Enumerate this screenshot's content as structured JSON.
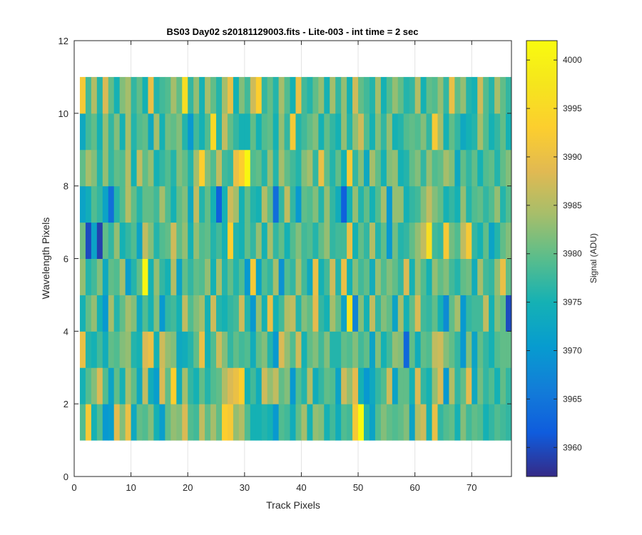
{
  "chart_data": {
    "type": "heatmap",
    "title": "BS03 Day02  s20181129003.fits - Lite-003 - int time = 2 sec",
    "xlabel": "Track Pixels",
    "ylabel": "Wavelength Pixels",
    "colorbar_label": "Signal (ADU)",
    "colormap": "parula",
    "xlim": [
      0,
      77
    ],
    "ylim": [
      0,
      12
    ],
    "clim": [
      3957,
      4002
    ],
    "grid": true,
    "x_ticks": [
      0,
      10,
      20,
      30,
      40,
      50,
      60,
      70
    ],
    "y_ticks": [
      0,
      2,
      4,
      6,
      8,
      10,
      12
    ],
    "colorbar_ticks": [
      3960,
      3965,
      3970,
      3975,
      3980,
      3985,
      3990,
      3995,
      4000
    ],
    "x_extent": [
      1,
      77
    ],
    "y_extent": [
      1,
      11
    ],
    "row_y_values": [
      1.5,
      2.5,
      3.5,
      4.5,
      5.5,
      6.5,
      7.5,
      8.5,
      9.5,
      10.5
    ],
    "column_count": 76,
    "values": [
      [
        3979,
        3992,
        3975,
        3979,
        3970,
        3971,
        3989,
        3982,
        3990,
        3973,
        3980,
        3979,
        3982,
        3975,
        3971,
        3980,
        3983,
        3982,
        3988,
        3979,
        3978,
        3986,
        3980,
        3984,
        3980,
        3993,
        3992,
        3983,
        3985,
        3979,
        3975,
        3975,
        3976,
        3975,
        3970,
        3979,
        3978,
        3974,
        3980,
        3984,
        3975,
        3983,
        3982,
        3975,
        3978,
        3974,
        3979,
        3978,
        3992,
        4002,
        3976,
        3972,
        3979,
        3982,
        3980,
        3979,
        3980,
        3982,
        3972,
        3985,
        3987,
        3975,
        3990,
        3977,
        3979,
        3980,
        3975,
        3982,
        3978,
        3980,
        3979,
        3975,
        3977,
        3979,
        3978,
        3977
      ],
      [
        3975,
        3979,
        3982,
        3988,
        3979,
        3972,
        3980,
        3975,
        3984,
        3980,
        3973,
        3986,
        3974,
        3971,
        3988,
        3980,
        3993,
        3974,
        3984,
        3977,
        3975,
        3980,
        3976,
        3979,
        3980,
        3985,
        3988,
        3990,
        3993,
        3975,
        3978,
        3974,
        3987,
        3983,
        3986,
        3980,
        3982,
        3970,
        3979,
        3976,
        3985,
        3974,
        3977,
        3980,
        3979,
        3972,
        3987,
        3983,
        3989,
        3975,
        3970,
        3973,
        3977,
        3979,
        3987,
        3972,
        3980,
        3980,
        3975,
        3988,
        3977,
        3975,
        3983,
        3988,
        3970,
        3985,
        3977,
        3980,
        3989,
        3973,
        3981,
        3977,
        3979,
        3975,
        3980,
        3977
      ],
      [
        3990,
        3976,
        3975,
        3978,
        3974,
        3980,
        3979,
        3982,
        3983,
        3976,
        3975,
        3988,
        3990,
        3975,
        3987,
        3983,
        3982,
        3973,
        3974,
        3976,
        3980,
        3990,
        3975,
        3979,
        3987,
        3982,
        3977,
        3980,
        3978,
        3979,
        3974,
        3980,
        3982,
        3976,
        3970,
        3988,
        3983,
        3979,
        3987,
        3975,
        3980,
        3982,
        3978,
        3982,
        3976,
        3976,
        3980,
        3979,
        3982,
        3978,
        3980,
        3972,
        3982,
        3975,
        3978,
        3983,
        3982,
        3963,
        3980,
        3974,
        3980,
        3979,
        3986,
        3987,
        3982,
        3980,
        3977,
        3970,
        3982,
        3972,
        3980,
        3977,
        3975,
        3979,
        3980,
        3980
      ],
      [
        3975,
        3980,
        3983,
        3975,
        3970,
        3984,
        3976,
        3980,
        3984,
        3982,
        3973,
        3979,
        3975,
        3982,
        3970,
        3977,
        3978,
        3975,
        3986,
        3979,
        3982,
        3984,
        3975,
        3987,
        3976,
        3975,
        3977,
        3978,
        3987,
        3976,
        3970,
        3983,
        3975,
        3990,
        3975,
        3978,
        3985,
        3986,
        3976,
        3982,
        3980,
        3989,
        3977,
        3975,
        3984,
        3980,
        3972,
        3997,
        3967,
        3982,
        3975,
        3986,
        3977,
        3982,
        3980,
        3972,
        3984,
        3975,
        3980,
        3988,
        3978,
        3977,
        3980,
        3975,
        3968,
        3980,
        3984,
        3970,
        3977,
        3978,
        3978,
        3986,
        3975,
        3982,
        3980,
        3960
      ],
      [
        3983,
        3976,
        3978,
        3982,
        3973,
        3980,
        3979,
        3984,
        3971,
        3976,
        3980,
        4001,
        3975,
        3983,
        3977,
        3975,
        3985,
        3972,
        3980,
        3977,
        3980,
        3979,
        3983,
        3975,
        3984,
        3976,
        3980,
        3976,
        3979,
        3970,
        3992,
        3972,
        3979,
        3977,
        3984,
        3969,
        3979,
        3977,
        3984,
        3978,
        3973,
        3990,
        3975,
        3978,
        3987,
        3976,
        3990,
        3975,
        3982,
        3978,
        3980,
        3974,
        3983,
        3979,
        3982,
        3980,
        3977,
        3988,
        3975,
        3983,
        3979,
        3975,
        3983,
        3980,
        3982,
        3978,
        3976,
        3980,
        3981,
        3974,
        3984,
        3978,
        3977,
        3983,
        3990,
        3980
      ],
      [
        3981,
        3960,
        3972,
        3959,
        3980,
        3977,
        3983,
        3975,
        3977,
        3979,
        3972,
        3986,
        3982,
        3976,
        3979,
        3980,
        3987,
        3980,
        3983,
        3975,
        3983,
        3979,
        3980,
        3976,
        3978,
        3975,
        3993,
        3976,
        3975,
        3980,
        3977,
        3983,
        3975,
        3984,
        3977,
        3980,
        3975,
        3979,
        3982,
        3978,
        3979,
        3976,
        3980,
        3983,
        3977,
        3978,
        3978,
        3990,
        3975,
        3980,
        3977,
        3985,
        3976,
        3980,
        3970,
        3981,
        3976,
        3977,
        3980,
        3983,
        3986,
        3996,
        3978,
        3977,
        3992,
        3981,
        3979,
        3986,
        3992,
        3977,
        3975,
        3980,
        3972,
        3976,
        3980,
        3982
      ],
      [
        3972,
        3974,
        3979,
        3977,
        3972,
        3964,
        3976,
        3979,
        3985,
        3980,
        3976,
        3980,
        3980,
        3978,
        3984,
        3979,
        3975,
        3980,
        3982,
        3973,
        3986,
        3976,
        3980,
        3975,
        3962,
        3975,
        3987,
        3984,
        3975,
        3980,
        3976,
        3975,
        3985,
        3980,
        3964,
        3977,
        3986,
        3977,
        3970,
        3980,
        3979,
        3982,
        3976,
        3983,
        3977,
        3974,
        3962,
        3975,
        3983,
        3976,
        3980,
        3975,
        3979,
        3984,
        3970,
        3983,
        3983,
        3975,
        3977,
        3978,
        3982,
        3986,
        3982,
        3980,
        3975,
        3977,
        3975,
        3983,
        3976,
        3979,
        3980,
        3977,
        3979,
        3983,
        3976,
        3979
      ],
      [
        3980,
        3984,
        3982,
        3976,
        3983,
        3977,
        3980,
        3979,
        3985,
        3975,
        3986,
        3980,
        3983,
        3975,
        3977,
        3979,
        3976,
        3982,
        3980,
        3976,
        3984,
        3993,
        3982,
        3979,
        3986,
        3978,
        3977,
        3990,
        3993,
        4001,
        3979,
        3980,
        3976,
        3983,
        3976,
        3984,
        3980,
        3978,
        3976,
        3982,
        3984,
        3977,
        3990,
        3980,
        3976,
        3980,
        3975,
        3992,
        3977,
        3982,
        3973,
        3984,
        3980,
        3975,
        3982,
        3983,
        3975,
        3976,
        3980,
        3982,
        3977,
        3983,
        3979,
        3980,
        3984,
        3982,
        3973,
        3980,
        3977,
        3980,
        3975,
        3979,
        3980,
        3976,
        3980,
        3982
      ],
      [
        3973,
        3978,
        3980,
        3975,
        3983,
        3977,
        3982,
        3975,
        3984,
        3976,
        3979,
        3980,
        3973,
        3984,
        3975,
        3981,
        3980,
        3982,
        3976,
        3970,
        3978,
        3975,
        3979,
        3995,
        3976,
        3986,
        3980,
        3977,
        3975,
        3975,
        3980,
        3975,
        3979,
        3980,
        3975,
        3983,
        3977,
        3992,
        3976,
        3978,
        3980,
        3982,
        3975,
        3980,
        3977,
        3975,
        3983,
        3976,
        3983,
        3987,
        3979,
        3975,
        3982,
        3977,
        3983,
        3975,
        3976,
        3979,
        3980,
        3979,
        3982,
        3977,
        3992,
        3984,
        3975,
        3980,
        3977,
        3973,
        3975,
        3976,
        3984,
        3979,
        3975,
        3977,
        3980,
        3975
      ],
      [
        3992,
        3978,
        3985,
        3976,
        3988,
        3980,
        3975,
        3982,
        3984,
        3977,
        3980,
        3975,
        3990,
        3976,
        3978,
        3979,
        3984,
        3980,
        3996,
        3977,
        3983,
        3975,
        3984,
        3980,
        3976,
        3984,
        3990,
        3975,
        3982,
        3978,
        3987,
        3993,
        3977,
        3980,
        3976,
        3984,
        3979,
        3975,
        3990,
        3978,
        3976,
        3980,
        3983,
        3975,
        3984,
        3977,
        3983,
        3975,
        3987,
        3980,
        3978,
        3976,
        3984,
        3975,
        3979,
        3983,
        3980,
        3976,
        3977,
        3985,
        3975,
        3980,
        3979,
        3983,
        3977,
        3990,
        3980,
        3983,
        3976,
        3975,
        3987,
        3979,
        3976,
        3984,
        3980,
        3977
      ]
    ]
  }
}
